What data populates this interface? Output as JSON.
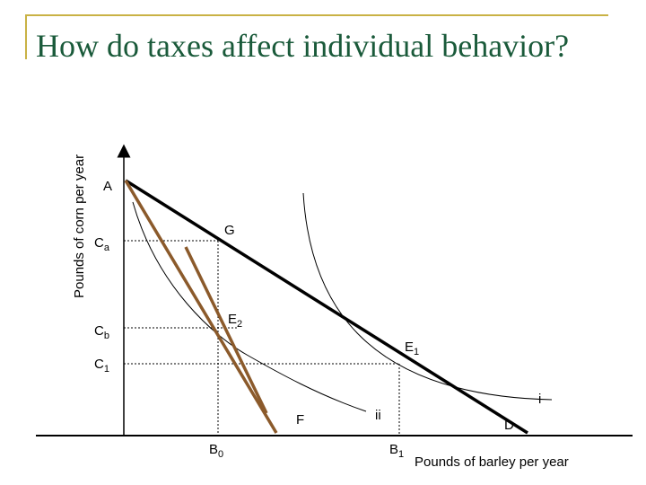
{
  "title": "How do taxes affect individual behavior?",
  "ylabel": "Pounds of corn per year",
  "xlabel": "Pounds of barley per year",
  "points": {
    "A": "A",
    "G": "G",
    "Ca": {
      "base": "C",
      "sub": "a"
    },
    "Cb": {
      "base": "C",
      "sub": "b"
    },
    "C1": {
      "base": "C",
      "sub": "1"
    },
    "E2": {
      "base": "E",
      "sub": "2"
    },
    "E1": {
      "base": "E",
      "sub": "1"
    },
    "i": "i",
    "ii": "ii",
    "F": "F",
    "D": "D",
    "B0": {
      "base": "B",
      "sub": "0"
    },
    "B1": {
      "base": "B",
      "sub": "1"
    }
  },
  "colors": {
    "title": "#1a5a3a",
    "frame": "#c9b245",
    "budget_line": "#000000",
    "taxed_line": "#8b5a2b",
    "indifference_curve": "#000000"
  }
}
